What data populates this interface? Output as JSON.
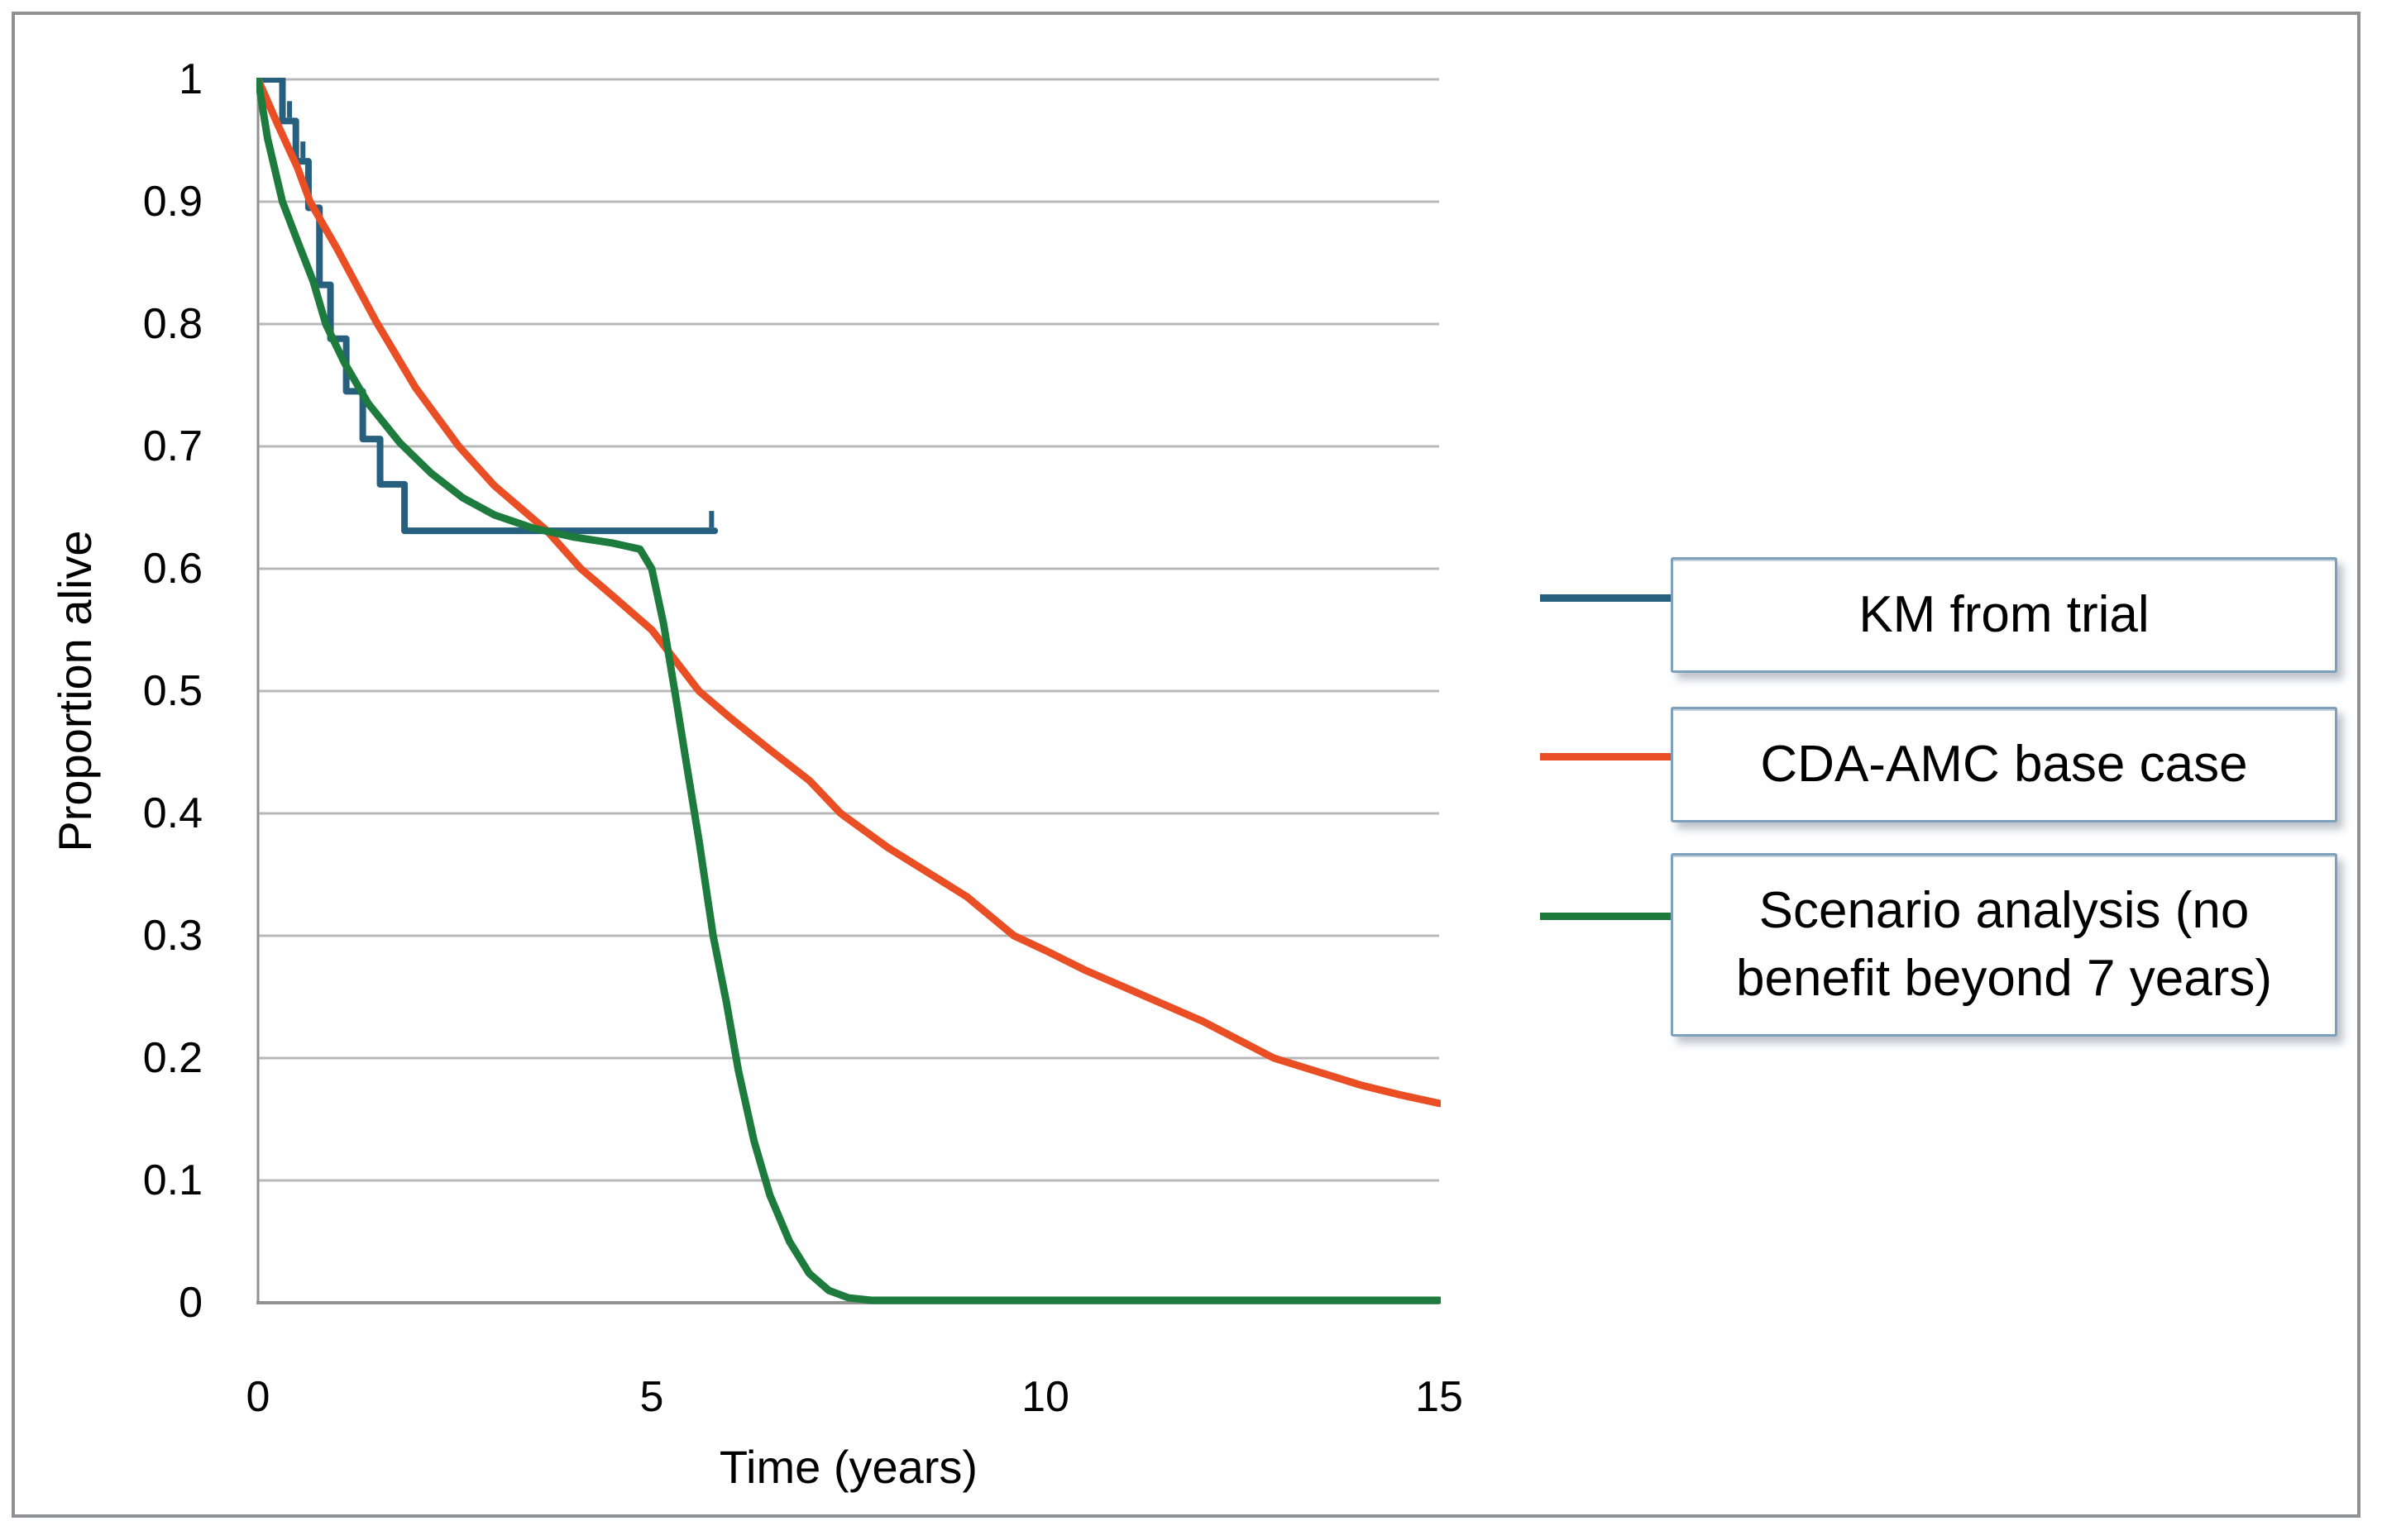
{
  "figure": {
    "background": "#ffffff",
    "frame_color": "#8e9093"
  },
  "axes": {
    "x_title": "Time (years)",
    "y_title": "Proportion alive",
    "x_ticks": [
      {
        "value": 0,
        "label": "0"
      },
      {
        "value": 5,
        "label": "5"
      },
      {
        "value": 10,
        "label": "10"
      },
      {
        "value": 15,
        "label": "15"
      }
    ],
    "y_ticks": [
      {
        "value": 1,
        "label": "1"
      },
      {
        "value": 0.9,
        "label": "0.9"
      },
      {
        "value": 0.8,
        "label": "0.8"
      },
      {
        "value": 0.7,
        "label": "0.7"
      },
      {
        "value": 0.6,
        "label": "0.6"
      },
      {
        "value": 0.5,
        "label": "0.5"
      },
      {
        "value": 0.4,
        "label": "0.4"
      },
      {
        "value": 0.3,
        "label": "0.3"
      },
      {
        "value": 0.2,
        "label": "0.2"
      },
      {
        "value": 0.1,
        "label": "0.1"
      },
      {
        "value": 0,
        "label": "0"
      }
    ],
    "gridline_color": "#b8b8b8",
    "axis_line_color": "#919191"
  },
  "legend": {
    "position": "right",
    "items": [
      {
        "label": "KM from trial",
        "color": "#27607F"
      },
      {
        "label": "CDA-AMC base case",
        "color": "#E94E25"
      },
      {
        "label": "Scenario analysis (no benefit beyond 7 years)",
        "color": "#1E7B3E"
      }
    ]
  },
  "chart_data": {
    "type": "line",
    "title": "",
    "xlabel": "Time (years)",
    "ylabel": "Proportion alive",
    "xlim": [
      0,
      15
    ],
    "ylim": [
      0,
      1
    ],
    "grid": "horizontal-only",
    "legend_position": "right",
    "series": [
      {
        "name": "KM from trial",
        "style": "step",
        "color": "#27607F",
        "stroke_width": 8,
        "end_time": 5.8,
        "points": [
          [
            0,
            1.0
          ],
          [
            0.31,
            0.966
          ],
          [
            0.48,
            0.933
          ],
          [
            0.64,
            0.895
          ],
          [
            0.78,
            0.832
          ],
          [
            0.92,
            0.788
          ],
          [
            1.12,
            0.745
          ],
          [
            1.33,
            0.706
          ],
          [
            1.55,
            0.669
          ],
          [
            1.86,
            0.631
          ]
        ],
        "censor_ticks": [
          [
            0.4,
            0.966
          ],
          [
            0.57,
            0.933
          ],
          [
            5.76,
            0.631
          ]
        ]
      },
      {
        "name": "CDA-AMC base case",
        "style": "smooth",
        "color": "#E94E25",
        "stroke_width": 9,
        "points": [
          [
            0,
            1.0
          ],
          [
            0.25,
            0.963
          ],
          [
            0.5,
            0.928
          ],
          [
            0.66,
            0.9
          ],
          [
            1.0,
            0.862
          ],
          [
            1.5,
            0.802
          ],
          [
            2.0,
            0.748
          ],
          [
            2.55,
            0.7
          ],
          [
            3.0,
            0.668
          ],
          [
            3.67,
            0.631
          ],
          [
            4.1,
            0.6
          ],
          [
            4.5,
            0.578
          ],
          [
            5.0,
            0.55
          ],
          [
            5.6,
            0.5
          ],
          [
            6.0,
            0.478
          ],
          [
            6.5,
            0.452
          ],
          [
            7.0,
            0.427
          ],
          [
            7.4,
            0.4
          ],
          [
            8.0,
            0.372
          ],
          [
            8.5,
            0.352
          ],
          [
            9.0,
            0.332
          ],
          [
            9.6,
            0.3
          ],
          [
            10.0,
            0.288
          ],
          [
            10.5,
            0.272
          ],
          [
            11.0,
            0.258
          ],
          [
            11.5,
            0.244
          ],
          [
            12.0,
            0.23
          ],
          [
            12.9,
            0.2
          ],
          [
            13.5,
            0.188
          ],
          [
            14.0,
            0.178
          ],
          [
            14.5,
            0.17
          ],
          [
            15.0,
            0.163
          ]
        ]
      },
      {
        "name": "Scenario analysis (no benefit beyond 7 years)",
        "style": "smooth",
        "color": "#1E7B3E",
        "stroke_width": 9,
        "points": [
          [
            0,
            1.0
          ],
          [
            0.12,
            0.952
          ],
          [
            0.31,
            0.9
          ],
          [
            0.5,
            0.868
          ],
          [
            0.7,
            0.835
          ],
          [
            0.86,
            0.8
          ],
          [
            1.1,
            0.768
          ],
          [
            1.4,
            0.735
          ],
          [
            1.8,
            0.703
          ],
          [
            2.2,
            0.678
          ],
          [
            2.6,
            0.658
          ],
          [
            3.0,
            0.644
          ],
          [
            3.5,
            0.633
          ],
          [
            4.0,
            0.626
          ],
          [
            4.5,
            0.621
          ],
          [
            4.85,
            0.616
          ],
          [
            5.0,
            0.6
          ],
          [
            5.15,
            0.555
          ],
          [
            5.3,
            0.497
          ],
          [
            5.45,
            0.437
          ],
          [
            5.6,
            0.378
          ],
          [
            5.78,
            0.3
          ],
          [
            5.95,
            0.245
          ],
          [
            6.1,
            0.19
          ],
          [
            6.3,
            0.132
          ],
          [
            6.5,
            0.088
          ],
          [
            6.75,
            0.05
          ],
          [
            7.0,
            0.024
          ],
          [
            7.25,
            0.01
          ],
          [
            7.5,
            0.004
          ],
          [
            7.8,
            0.002
          ],
          [
            15,
            0.002
          ]
        ]
      }
    ]
  }
}
